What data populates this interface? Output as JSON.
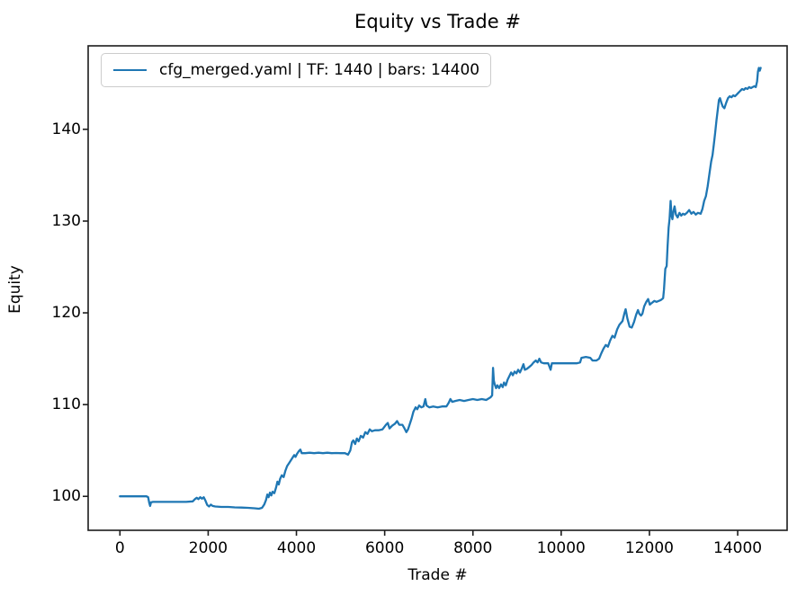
{
  "figure": {
    "title": "Equity vs Trade #",
    "xlabel": "Trade #",
    "ylabel": "Equity",
    "legend": {
      "label": "cfg_merged.yaml | TF: 1440 | bars: 14400"
    },
    "colors": {
      "line": "#1f77b4",
      "spine": "#1c1c1c",
      "text": "#000000",
      "legend_border": "#cccccc",
      "background": "#ffffff"
    }
  },
  "chart_data": {
    "type": "line",
    "title": "Equity vs Trade #",
    "xlabel": "Trade #",
    "ylabel": "Equity",
    "legend_entries": [
      "cfg_merged.yaml | TF: 1440 | bars: 14400"
    ],
    "legend_position": "upper left",
    "grid": false,
    "xlim": [
      -720,
      15120
    ],
    "ylim": [
      96.3,
      149.1
    ],
    "xticks": [
      0,
      2000,
      4000,
      6000,
      8000,
      10000,
      12000,
      14000
    ],
    "yticks": [
      100,
      110,
      120,
      130,
      140
    ],
    "series": [
      {
        "name": "cfg_merged.yaml | TF: 1440 | bars: 14400",
        "color": "#1f77b4",
        "points": [
          [
            0,
            100.0
          ],
          [
            150,
            100.0
          ],
          [
            300,
            100.0
          ],
          [
            450,
            100.0
          ],
          [
            600,
            100.0
          ],
          [
            640,
            99.9
          ],
          [
            665,
            99.3
          ],
          [
            685,
            98.95
          ],
          [
            705,
            99.35
          ],
          [
            750,
            99.4
          ],
          [
            900,
            99.4
          ],
          [
            1100,
            99.4
          ],
          [
            1300,
            99.4
          ],
          [
            1500,
            99.4
          ],
          [
            1650,
            99.45
          ],
          [
            1700,
            99.7
          ],
          [
            1740,
            99.85
          ],
          [
            1780,
            99.7
          ],
          [
            1820,
            99.9
          ],
          [
            1860,
            99.75
          ],
          [
            1900,
            99.9
          ],
          [
            1940,
            99.5
          ],
          [
            1980,
            99.05
          ],
          [
            2020,
            98.9
          ],
          [
            2060,
            99.1
          ],
          [
            2100,
            98.95
          ],
          [
            2160,
            98.9
          ],
          [
            2300,
            98.85
          ],
          [
            2450,
            98.85
          ],
          [
            2600,
            98.8
          ],
          [
            2750,
            98.78
          ],
          [
            2900,
            98.75
          ],
          [
            3050,
            98.7
          ],
          [
            3150,
            98.65
          ],
          [
            3220,
            98.75
          ],
          [
            3270,
            99.1
          ],
          [
            3310,
            99.6
          ],
          [
            3340,
            100.2
          ],
          [
            3370,
            99.9
          ],
          [
            3400,
            100.4
          ],
          [
            3430,
            100.1
          ],
          [
            3460,
            100.5
          ],
          [
            3500,
            100.35
          ],
          [
            3540,
            101.0
          ],
          [
            3570,
            101.6
          ],
          [
            3600,
            101.3
          ],
          [
            3630,
            101.9
          ],
          [
            3670,
            102.3
          ],
          [
            3710,
            102.1
          ],
          [
            3750,
            102.8
          ],
          [
            3790,
            103.3
          ],
          [
            3830,
            103.6
          ],
          [
            3870,
            103.9
          ],
          [
            3910,
            104.2
          ],
          [
            3950,
            104.5
          ],
          [
            3980,
            104.3
          ],
          [
            4010,
            104.6
          ],
          [
            4050,
            104.9
          ],
          [
            4090,
            105.1
          ],
          [
            4120,
            104.7
          ],
          [
            4200,
            104.7
          ],
          [
            4300,
            104.75
          ],
          [
            4400,
            104.7
          ],
          [
            4500,
            104.75
          ],
          [
            4600,
            104.7
          ],
          [
            4700,
            104.75
          ],
          [
            4800,
            104.7
          ],
          [
            4900,
            104.72
          ],
          [
            5000,
            104.7
          ],
          [
            5100,
            104.7
          ],
          [
            5170,
            104.55
          ],
          [
            5220,
            105.0
          ],
          [
            5260,
            105.9
          ],
          [
            5290,
            106.1
          ],
          [
            5330,
            105.7
          ],
          [
            5370,
            106.3
          ],
          [
            5410,
            106.0
          ],
          [
            5460,
            106.6
          ],
          [
            5510,
            106.4
          ],
          [
            5560,
            107.0
          ],
          [
            5610,
            106.8
          ],
          [
            5660,
            107.3
          ],
          [
            5710,
            107.1
          ],
          [
            5780,
            107.2
          ],
          [
            5860,
            107.2
          ],
          [
            5950,
            107.3
          ],
          [
            6030,
            107.8
          ],
          [
            6070,
            108.0
          ],
          [
            6110,
            107.4
          ],
          [
            6170,
            107.7
          ],
          [
            6230,
            107.9
          ],
          [
            6280,
            108.2
          ],
          [
            6330,
            107.8
          ],
          [
            6400,
            107.8
          ],
          [
            6450,
            107.4
          ],
          [
            6490,
            107.0
          ],
          [
            6530,
            107.3
          ],
          [
            6570,
            107.9
          ],
          [
            6610,
            108.5
          ],
          [
            6650,
            109.2
          ],
          [
            6700,
            109.7
          ],
          [
            6740,
            109.5
          ],
          [
            6780,
            109.9
          ],
          [
            6830,
            109.7
          ],
          [
            6880,
            109.8
          ],
          [
            6920,
            110.6
          ],
          [
            6950,
            109.9
          ],
          [
            7010,
            109.7
          ],
          [
            7100,
            109.8
          ],
          [
            7200,
            109.7
          ],
          [
            7300,
            109.8
          ],
          [
            7400,
            109.8
          ],
          [
            7450,
            110.2
          ],
          [
            7490,
            110.6
          ],
          [
            7530,
            110.3
          ],
          [
            7600,
            110.4
          ],
          [
            7700,
            110.5
          ],
          [
            7800,
            110.4
          ],
          [
            7900,
            110.5
          ],
          [
            8000,
            110.6
          ],
          [
            8100,
            110.5
          ],
          [
            8200,
            110.6
          ],
          [
            8300,
            110.5
          ],
          [
            8400,
            110.8
          ],
          [
            8435,
            111.0
          ],
          [
            8455,
            114.0
          ],
          [
            8475,
            112.6
          ],
          [
            8495,
            112.2
          ],
          [
            8525,
            111.8
          ],
          [
            8555,
            112.1
          ],
          [
            8595,
            111.8
          ],
          [
            8635,
            112.2
          ],
          [
            8675,
            111.9
          ],
          [
            8705,
            112.4
          ],
          [
            8745,
            112.1
          ],
          [
            8785,
            112.7
          ],
          [
            8825,
            113.1
          ],
          [
            8865,
            113.5
          ],
          [
            8905,
            113.2
          ],
          [
            8945,
            113.6
          ],
          [
            8985,
            113.4
          ],
          [
            9025,
            113.8
          ],
          [
            9065,
            113.5
          ],
          [
            9105,
            113.9
          ],
          [
            9145,
            114.4
          ],
          [
            9175,
            113.8
          ],
          [
            9225,
            113.9
          ],
          [
            9275,
            114.1
          ],
          [
            9325,
            114.3
          ],
          [
            9375,
            114.6
          ],
          [
            9425,
            114.8
          ],
          [
            9465,
            114.6
          ],
          [
            9505,
            115.0
          ],
          [
            9545,
            114.6
          ],
          [
            9605,
            114.5
          ],
          [
            9705,
            114.5
          ],
          [
            9760,
            113.8
          ],
          [
            9790,
            114.5
          ],
          [
            9900,
            114.5
          ],
          [
            10050,
            114.5
          ],
          [
            10200,
            114.5
          ],
          [
            10350,
            114.5
          ],
          [
            10430,
            114.6
          ],
          [
            10460,
            115.1
          ],
          [
            10560,
            115.2
          ],
          [
            10660,
            115.1
          ],
          [
            10710,
            114.8
          ],
          [
            10800,
            114.8
          ],
          [
            10860,
            115.0
          ],
          [
            10910,
            115.6
          ],
          [
            10960,
            116.1
          ],
          [
            11010,
            116.5
          ],
          [
            11060,
            116.3
          ],
          [
            11110,
            117.0
          ],
          [
            11160,
            117.5
          ],
          [
            11210,
            117.3
          ],
          [
            11270,
            118.2
          ],
          [
            11320,
            118.7
          ],
          [
            11390,
            119.1
          ],
          [
            11430,
            119.9
          ],
          [
            11460,
            120.4
          ],
          [
            11500,
            119.4
          ],
          [
            11550,
            118.5
          ],
          [
            11600,
            118.4
          ],
          [
            11650,
            119.0
          ],
          [
            11700,
            119.8
          ],
          [
            11740,
            120.3
          ],
          [
            11770,
            119.9
          ],
          [
            11810,
            119.7
          ],
          [
            11840,
            119.9
          ],
          [
            11880,
            120.7
          ],
          [
            11930,
            121.2
          ],
          [
            11970,
            121.5
          ],
          [
            12010,
            120.9
          ],
          [
            12060,
            121.1
          ],
          [
            12110,
            121.3
          ],
          [
            12160,
            121.2
          ],
          [
            12210,
            121.3
          ],
          [
            12260,
            121.4
          ],
          [
            12310,
            121.6
          ],
          [
            12330,
            122.5
          ],
          [
            12360,
            124.8
          ],
          [
            12390,
            125.1
          ],
          [
            12410,
            127.2
          ],
          [
            12435,
            129.3
          ],
          [
            12455,
            130.2
          ],
          [
            12480,
            132.2
          ],
          [
            12500,
            130.6
          ],
          [
            12520,
            130.2
          ],
          [
            12545,
            131.1
          ],
          [
            12570,
            131.6
          ],
          [
            12600,
            130.7
          ],
          [
            12640,
            130.4
          ],
          [
            12680,
            130.9
          ],
          [
            12720,
            130.6
          ],
          [
            12760,
            130.8
          ],
          [
            12800,
            130.7
          ],
          [
            12850,
            130.9
          ],
          [
            12900,
            131.2
          ],
          [
            12950,
            130.8
          ],
          [
            13000,
            131.0
          ],
          [
            13050,
            130.7
          ],
          [
            13100,
            130.9
          ],
          [
            13160,
            130.8
          ],
          [
            13200,
            131.3
          ],
          [
            13240,
            132.2
          ],
          [
            13280,
            132.7
          ],
          [
            13320,
            133.8
          ],
          [
            13360,
            135.2
          ],
          [
            13400,
            136.5
          ],
          [
            13430,
            137.2
          ],
          [
            13460,
            138.4
          ],
          [
            13490,
            139.6
          ],
          [
            13520,
            141.0
          ],
          [
            13550,
            142.2
          ],
          [
            13575,
            143.2
          ],
          [
            13600,
            143.4
          ],
          [
            13630,
            142.9
          ],
          [
            13660,
            142.5
          ],
          [
            13700,
            142.3
          ],
          [
            13740,
            142.9
          ],
          [
            13780,
            143.4
          ],
          [
            13820,
            143.6
          ],
          [
            13860,
            143.5
          ],
          [
            13900,
            143.7
          ],
          [
            13940,
            143.6
          ],
          [
            13980,
            143.8
          ],
          [
            14020,
            144.0
          ],
          [
            14060,
            144.2
          ],
          [
            14100,
            144.4
          ],
          [
            14140,
            144.3
          ],
          [
            14180,
            144.5
          ],
          [
            14220,
            144.4
          ],
          [
            14260,
            144.6
          ],
          [
            14300,
            144.5
          ],
          [
            14340,
            144.6
          ],
          [
            14380,
            144.7
          ],
          [
            14410,
            144.6
          ],
          [
            14440,
            145.2
          ],
          [
            14460,
            146.3
          ],
          [
            14480,
            146.7
          ],
          [
            14500,
            146.4
          ],
          [
            14520,
            146.7
          ]
        ]
      }
    ]
  }
}
